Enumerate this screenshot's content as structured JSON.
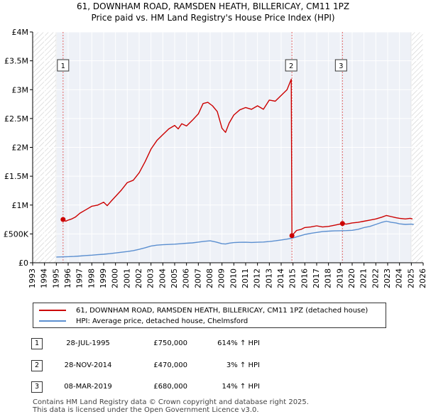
{
  "chart_data": {
    "type": "line",
    "title": "61, DOWNHAM ROAD, RAMSDEN HEATH, BILLERICAY, CM11 1PZ",
    "subtitle": "Price paid vs. HM Land Registry's House Price Index (HPI)",
    "xlabel": "",
    "ylabel": "",
    "xlim": [
      1993,
      2026
    ],
    "ylim": [
      0,
      4000000
    ],
    "y_ticks": [
      0,
      500000,
      1000000,
      1500000,
      2000000,
      2500000,
      3000000,
      3500000,
      4000000
    ],
    "y_tick_labels": [
      "£0",
      "£500K",
      "£1M",
      "£1.5M",
      "£2M",
      "£2.5M",
      "£3M",
      "£3.5M",
      "£4M"
    ],
    "x_ticks": [
      1993,
      1994,
      1995,
      1996,
      1997,
      1998,
      1999,
      2000,
      2001,
      2002,
      2003,
      2004,
      2005,
      2006,
      2007,
      2008,
      2009,
      2010,
      2011,
      2012,
      2013,
      2014,
      2015,
      2016,
      2017,
      2018,
      2019,
      2020,
      2021,
      2022,
      2023,
      2024,
      2025,
      2026
    ],
    "x_tick_labels": [
      "1993",
      "1994",
      "1995",
      "1996",
      "1997",
      "1998",
      "1999",
      "2000",
      "2001",
      "2002",
      "2003",
      "2004",
      "2005",
      "2006",
      "2007",
      "2008",
      "2009",
      "2010",
      "2011",
      "2012",
      "2013",
      "2014",
      "2015",
      "2016",
      "2017",
      "2018",
      "2019",
      "2020",
      "2021",
      "2022",
      "2023",
      "2024",
      "2025",
      "2026"
    ],
    "grid": true,
    "hatched_ranges": [
      [
        1993,
        1995
      ],
      [
        2025,
        2026
      ]
    ],
    "series": [
      {
        "name": "61, DOWNHAM ROAD, RAMSDEN HEATH, BILLERICAY, CM11 1PZ (detached house)",
        "color": "#cc0000",
        "x": [
          1995.57,
          1995.8,
          1996.0,
          1996.3,
          1996.6,
          1997.0,
          1997.5,
          1998.0,
          1998.5,
          1999.0,
          1999.3,
          1999.6,
          2000.0,
          2000.5,
          2001.0,
          2001.5,
          2002.0,
          2002.5,
          2003.0,
          2003.5,
          2004.0,
          2004.5,
          2005.0,
          2005.3,
          2005.6,
          2006.0,
          2006.5,
          2007.0,
          2007.4,
          2007.8,
          2008.2,
          2008.6,
          2009.0,
          2009.3,
          2009.6,
          2010.0,
          2010.5,
          2011.0,
          2011.5,
          2012.0,
          2012.5,
          2013.0,
          2013.5,
          2014.0,
          2014.5,
          2014.85,
          2014.91,
          2015.3,
          2015.7,
          2016.0,
          2016.5,
          2017.0,
          2017.5,
          2018.0,
          2018.5,
          2019.18,
          2019.5,
          2020.0,
          2020.5,
          2021.0,
          2021.5,
          2022.0,
          2022.5,
          2022.9,
          2023.3,
          2023.7,
          2024.0,
          2024.5,
          2024.9,
          2025.1
        ],
        "values": [
          750000,
          720000,
          740000,
          760000,
          790000,
          860000,
          920000,
          980000,
          1000000,
          1050000,
          990000,
          1060000,
          1150000,
          1260000,
          1390000,
          1430000,
          1560000,
          1750000,
          1970000,
          2120000,
          2220000,
          2320000,
          2380000,
          2320000,
          2410000,
          2370000,
          2470000,
          2580000,
          2760000,
          2780000,
          2720000,
          2620000,
          2330000,
          2260000,
          2420000,
          2560000,
          2650000,
          2690000,
          2660000,
          2720000,
          2660000,
          2820000,
          2800000,
          2900000,
          3000000,
          3180000,
          470000,
          560000,
          580000,
          610000,
          620000,
          640000,
          620000,
          630000,
          650000,
          680000,
          670000,
          690000,
          700000,
          720000,
          740000,
          760000,
          790000,
          820000,
          800000,
          780000,
          770000,
          760000,
          770000,
          760000
        ]
      },
      {
        "name": "HPI: Average price, detached house, Chelmsford",
        "color": "#5b8fd0",
        "x": [
          1995.0,
          1995.5,
          1996.0,
          1996.5,
          1997.0,
          1997.5,
          1998.0,
          1998.5,
          1999.0,
          1999.5,
          2000.0,
          2000.5,
          2001.0,
          2001.5,
          2002.0,
          2002.5,
          2003.0,
          2003.5,
          2004.0,
          2004.5,
          2005.0,
          2005.5,
          2006.0,
          2006.5,
          2007.0,
          2007.5,
          2008.0,
          2008.5,
          2009.0,
          2009.3,
          2009.6,
          2010.0,
          2010.5,
          2011.0,
          2011.5,
          2012.0,
          2012.5,
          2013.0,
          2013.5,
          2014.0,
          2014.5,
          2015.0,
          2015.5,
          2016.0,
          2016.5,
          2017.0,
          2017.5,
          2018.0,
          2018.5,
          2019.0,
          2019.5,
          2020.0,
          2020.5,
          2021.0,
          2021.5,
          2022.0,
          2022.5,
          2022.9,
          2023.3,
          2023.7,
          2024.0,
          2024.5,
          2025.0,
          2025.2
        ],
        "values": [
          100000,
          102000,
          106000,
          110000,
          117000,
          125000,
          132000,
          140000,
          148000,
          158000,
          170000,
          182000,
          195000,
          210000,
          232000,
          260000,
          290000,
          305000,
          312000,
          318000,
          322000,
          330000,
          338000,
          345000,
          358000,
          372000,
          380000,
          360000,
          330000,
          325000,
          340000,
          350000,
          355000,
          356000,
          352000,
          356000,
          360000,
          368000,
          380000,
          395000,
          410000,
          430000,
          460000,
          490000,
          510000,
          525000,
          540000,
          548000,
          552000,
          555000,
          558000,
          562000,
          580000,
          610000,
          630000,
          665000,
          700000,
          720000,
          700000,
          690000,
          675000,
          665000,
          670000,
          665000
        ]
      }
    ],
    "sales": [
      {
        "label": "1",
        "x": 1995.57,
        "value": 750000
      },
      {
        "label": "2",
        "x": 2014.91,
        "value": 470000
      },
      {
        "label": "3",
        "x": 2019.18,
        "value": 680000
      }
    ]
  },
  "legend": {
    "items": [
      {
        "label": "61, DOWNHAM ROAD, RAMSDEN HEATH, BILLERICAY, CM11 1PZ (detached house)",
        "color": "#cc0000"
      },
      {
        "label": "HPI: Average price, detached house, Chelmsford",
        "color": "#5b8fd0"
      }
    ]
  },
  "transactions": [
    {
      "num": "1",
      "date": "28-JUL-1995",
      "price": "£750,000",
      "hpi": "614% ↑ HPI"
    },
    {
      "num": "2",
      "date": "28-NOV-2014",
      "price": "£470,000",
      "hpi": "3% ↑ HPI"
    },
    {
      "num": "3",
      "date": "08-MAR-2019",
      "price": "£680,000",
      "hpi": "14% ↑ HPI"
    }
  ],
  "footer": {
    "line1": "Contains HM Land Registry data © Crown copyright and database right 2025.",
    "line2": "This data is licensed under the Open Government Licence v3.0."
  }
}
